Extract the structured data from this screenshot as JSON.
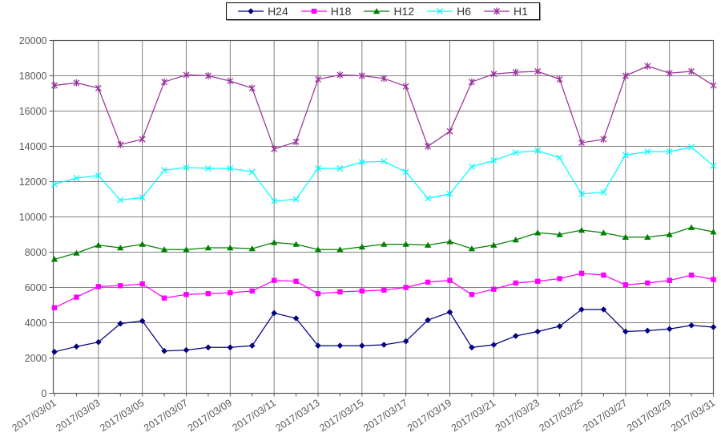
{
  "chart_data": {
    "type": "line",
    "title": "",
    "xlabel": "",
    "ylabel": "",
    "grid": true,
    "legend_position": "top-center",
    "y_axis": {
      "min": 0,
      "max": 20000,
      "step": 2000,
      "tick_labels": [
        "0",
        "2000",
        "4000",
        "6000",
        "8000",
        "10000",
        "12000",
        "14000",
        "16000",
        "18000",
        "20000"
      ]
    },
    "x_axis": {
      "days": 31,
      "tick_labels": [
        "2017/03/01",
        "2017/03/03",
        "2017/03/05",
        "2017/03/07",
        "2017/03/09",
        "2017/03/11",
        "2017/03/13",
        "2017/03/15",
        "2017/03/17",
        "2017/03/19",
        "2017/03/21",
        "2017/03/23",
        "2017/03/25",
        "2017/03/27",
        "2017/03/29",
        "2017/03/31"
      ]
    },
    "series": [
      {
        "name": "H24",
        "color": "#000080",
        "marker": "diamond",
        "values": [
          2350,
          2650,
          2900,
          3950,
          4100,
          2400,
          2450,
          2600,
          2600,
          2700,
          4550,
          4250,
          2700,
          2700,
          2700,
          2750,
          2950,
          4150,
          4600,
          2600,
          2750,
          3250,
          3500,
          3800,
          4750,
          4750,
          3500,
          3550,
          3650,
          3850,
          3750
        ]
      },
      {
        "name": "H18",
        "color": "#FF00FF",
        "marker": "square",
        "values": [
          4850,
          5450,
          6050,
          6100,
          6200,
          5400,
          5600,
          5650,
          5700,
          5800,
          6400,
          6350,
          5650,
          5750,
          5800,
          5850,
          6000,
          6300,
          6400,
          5600,
          5900,
          6250,
          6350,
          6500,
          6800,
          6700,
          6150,
          6250,
          6400,
          6700,
          6450
        ]
      },
      {
        "name": "H12",
        "color": "#008000",
        "marker": "triangle",
        "values": [
          7600,
          7950,
          8400,
          8250,
          8450,
          8150,
          8150,
          8250,
          8250,
          8200,
          8550,
          8450,
          8150,
          8150,
          8300,
          8450,
          8450,
          8400,
          8600,
          8200,
          8400,
          8700,
          9100,
          9000,
          9250,
          9100,
          8850,
          8850,
          9000,
          9400,
          9150
        ]
      },
      {
        "name": "H6",
        "color": "#00FFFF",
        "marker": "x",
        "values": [
          11850,
          12200,
          12350,
          10950,
          11100,
          12650,
          12800,
          12750,
          12750,
          12550,
          10900,
          11000,
          12750,
          12750,
          13100,
          13150,
          12550,
          11050,
          11300,
          12850,
          13200,
          13650,
          13750,
          13350,
          11300,
          11400,
          13500,
          13700,
          13700,
          13950,
          12900
        ]
      },
      {
        "name": "H1",
        "color": "#993399",
        "marker": "asterisk",
        "values": [
          17450,
          17600,
          17300,
          14100,
          14400,
          17650,
          18050,
          18000,
          17700,
          17300,
          13850,
          14250,
          17800,
          18050,
          18000,
          17850,
          17400,
          14000,
          14850,
          17650,
          18100,
          18200,
          18250,
          17800,
          14200,
          14400,
          18000,
          18550,
          18150,
          18250,
          17450
        ]
      }
    ],
    "colors": {
      "frame": "#595959",
      "gridline": "#808080",
      "tick_text": "#595959"
    }
  }
}
